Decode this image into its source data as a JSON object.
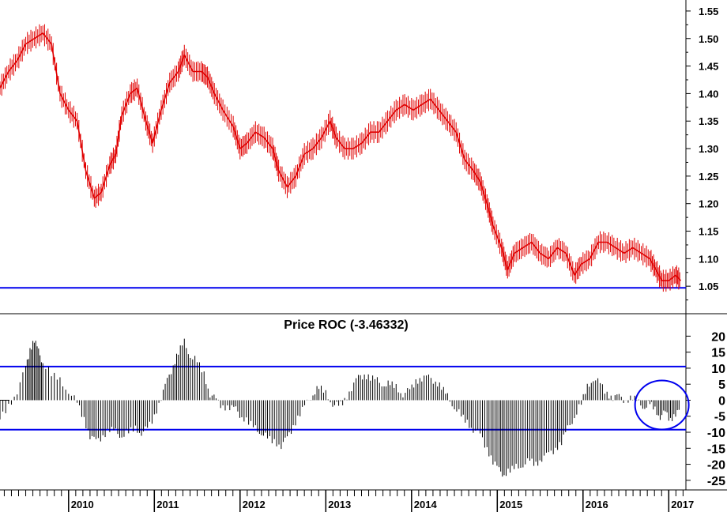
{
  "chart_data": [
    {
      "type": "line",
      "title": "",
      "xlabel": "",
      "ylabel": "",
      "ylim": [
        1.0,
        1.57
      ],
      "xlim": [
        2009.2,
        2017.2
      ],
      "y_ticks": [
        "1.55",
        "1.50",
        "1.45",
        "1.40",
        "1.35",
        "1.30",
        "1.25",
        "1.20",
        "1.15",
        "1.10",
        "1.05"
      ],
      "y_tick_values": [
        1.55,
        1.5,
        1.45,
        1.4,
        1.35,
        1.3,
        1.25,
        1.2,
        1.15,
        1.1,
        1.05
      ],
      "horizontal_lines": [
        1.047
      ],
      "series": [
        {
          "color": "#e00000",
          "points": [
            [
              2009.2,
              1.41
            ],
            [
              2009.3,
              1.44
            ],
            [
              2009.4,
              1.46
            ],
            [
              2009.5,
              1.49
            ],
            [
              2009.6,
              1.5
            ],
            [
              2009.7,
              1.51
            ],
            [
              2009.8,
              1.49
            ],
            [
              2009.9,
              1.4
            ],
            [
              2010.0,
              1.37
            ],
            [
              2010.1,
              1.35
            ],
            [
              2010.2,
              1.26
            ],
            [
              2010.3,
              1.21
            ],
            [
              2010.38,
              1.22
            ],
            [
              2010.48,
              1.27
            ],
            [
              2010.55,
              1.29
            ],
            [
              2010.62,
              1.36
            ],
            [
              2010.72,
              1.4
            ],
            [
              2010.8,
              1.41
            ],
            [
              2010.9,
              1.35
            ],
            [
              2010.98,
              1.31
            ],
            [
              2011.08,
              1.37
            ],
            [
              2011.18,
              1.42
            ],
            [
              2011.28,
              1.44
            ],
            [
              2011.35,
              1.47
            ],
            [
              2011.45,
              1.44
            ],
            [
              2011.55,
              1.44
            ],
            [
              2011.62,
              1.43
            ],
            [
              2011.7,
              1.4
            ],
            [
              2011.8,
              1.37
            ],
            [
              2011.92,
              1.34
            ],
            [
              2012.0,
              1.3
            ],
            [
              2012.08,
              1.31
            ],
            [
              2012.18,
              1.33
            ],
            [
              2012.28,
              1.32
            ],
            [
              2012.38,
              1.3
            ],
            [
              2012.45,
              1.26
            ],
            [
              2012.55,
              1.23
            ],
            [
              2012.65,
              1.25
            ],
            [
              2012.75,
              1.29
            ],
            [
              2012.85,
              1.3
            ],
            [
              2012.95,
              1.32
            ],
            [
              2013.05,
              1.35
            ],
            [
              2013.12,
              1.32
            ],
            [
              2013.22,
              1.3
            ],
            [
              2013.32,
              1.3
            ],
            [
              2013.42,
              1.31
            ],
            [
              2013.52,
              1.33
            ],
            [
              2013.62,
              1.33
            ],
            [
              2013.72,
              1.35
            ],
            [
              2013.82,
              1.37
            ],
            [
              2013.92,
              1.38
            ],
            [
              2014.02,
              1.37
            ],
            [
              2014.12,
              1.38
            ],
            [
              2014.22,
              1.39
            ],
            [
              2014.32,
              1.37
            ],
            [
              2014.42,
              1.35
            ],
            [
              2014.52,
              1.33
            ],
            [
              2014.62,
              1.28
            ],
            [
              2014.72,
              1.26
            ],
            [
              2014.8,
              1.24
            ],
            [
              2014.88,
              1.2
            ],
            [
              2014.95,
              1.16
            ],
            [
              2015.05,
              1.12
            ],
            [
              2015.12,
              1.08
            ],
            [
              2015.2,
              1.11
            ],
            [
              2015.3,
              1.12
            ],
            [
              2015.4,
              1.13
            ],
            [
              2015.5,
              1.11
            ],
            [
              2015.6,
              1.1
            ],
            [
              2015.7,
              1.12
            ],
            [
              2015.8,
              1.11
            ],
            [
              2015.9,
              1.07
            ],
            [
              2015.98,
              1.09
            ],
            [
              2016.08,
              1.1
            ],
            [
              2016.18,
              1.13
            ],
            [
              2016.28,
              1.13
            ],
            [
              2016.38,
              1.12
            ],
            [
              2016.48,
              1.11
            ],
            [
              2016.58,
              1.12
            ],
            [
              2016.68,
              1.11
            ],
            [
              2016.78,
              1.1
            ],
            [
              2016.85,
              1.08
            ],
            [
              2016.92,
              1.06
            ],
            [
              2017.0,
              1.06
            ],
            [
              2017.08,
              1.07
            ],
            [
              2017.14,
              1.06
            ]
          ]
        }
      ]
    },
    {
      "type": "bar",
      "title": "Price ROC (-3.46332)",
      "xlabel": "",
      "ylabel": "",
      "ylim": [
        -28,
        27
      ],
      "xlim": [
        2009.2,
        2017.2
      ],
      "y_ticks": [
        "20",
        "15",
        "10",
        "5",
        "0",
        "-5",
        "-10",
        "-15",
        "-20",
        "-25"
      ],
      "y_tick_values": [
        20,
        15,
        10,
        5,
        0,
        -5,
        -10,
        -15,
        -20,
        -25
      ],
      "horizontal_lines": [
        10.5,
        -9.2
      ],
      "annotation": "circle",
      "annotation_center": [
        2016.92,
        -1.5
      ],
      "series": [
        {
          "color": "#000000",
          "points": [
            [
              2009.2,
              -6
            ],
            [
              2009.3,
              -2
            ],
            [
              2009.4,
              3
            ],
            [
              2009.5,
              10
            ],
            [
              2009.55,
              16
            ],
            [
              2009.6,
              19
            ],
            [
              2009.65,
              15
            ],
            [
              2009.7,
              12
            ],
            [
              2009.8,
              8
            ],
            [
              2009.9,
              6
            ],
            [
              2010.0,
              3
            ],
            [
              2010.1,
              -1
            ],
            [
              2010.18,
              -6
            ],
            [
              2010.25,
              -11
            ],
            [
              2010.32,
              -13
            ],
            [
              2010.4,
              -11
            ],
            [
              2010.48,
              -9
            ],
            [
              2010.55,
              -10
            ],
            [
              2010.62,
              -11
            ],
            [
              2010.7,
              -10
            ],
            [
              2010.78,
              -9
            ],
            [
              2010.85,
              -10
            ],
            [
              2010.92,
              -9
            ],
            [
              2011.0,
              -5
            ],
            [
              2011.08,
              1
            ],
            [
              2011.15,
              6
            ],
            [
              2011.22,
              11
            ],
            [
              2011.28,
              15
            ],
            [
              2011.35,
              18
            ],
            [
              2011.42,
              14
            ],
            [
              2011.5,
              12
            ],
            [
              2011.58,
              8
            ],
            [
              2011.65,
              2
            ],
            [
              2011.72,
              0
            ],
            [
              2011.8,
              -2
            ],
            [
              2011.88,
              -2
            ],
            [
              2011.95,
              -3
            ],
            [
              2012.02,
              -5
            ],
            [
              2012.1,
              -7
            ],
            [
              2012.18,
              -9
            ],
            [
              2012.25,
              -10
            ],
            [
              2012.32,
              -12
            ],
            [
              2012.4,
              -13
            ],
            [
              2012.48,
              -14
            ],
            [
              2012.55,
              -12
            ],
            [
              2012.62,
              -8
            ],
            [
              2012.7,
              -4
            ],
            [
              2012.78,
              -1
            ],
            [
              2012.85,
              2
            ],
            [
              2012.92,
              4
            ],
            [
              2013.0,
              2
            ],
            [
              2013.08,
              -1
            ],
            [
              2013.15,
              -2
            ],
            [
              2013.22,
              0
            ],
            [
              2013.3,
              4
            ],
            [
              2013.38,
              7
            ],
            [
              2013.45,
              8
            ],
            [
              2013.52,
              7
            ],
            [
              2013.6,
              6
            ],
            [
              2013.68,
              5
            ],
            [
              2013.75,
              5
            ],
            [
              2013.82,
              4
            ],
            [
              2013.9,
              2
            ],
            [
              2013.98,
              3
            ],
            [
              2014.05,
              6
            ],
            [
              2014.12,
              7
            ],
            [
              2014.2,
              7
            ],
            [
              2014.28,
              6
            ],
            [
              2014.35,
              4
            ],
            [
              2014.42,
              1
            ],
            [
              2014.5,
              -2
            ],
            [
              2014.58,
              -5
            ],
            [
              2014.65,
              -7
            ],
            [
              2014.72,
              -9
            ],
            [
              2014.8,
              -11
            ],
            [
              2014.88,
              -15
            ],
            [
              2014.95,
              -19
            ],
            [
              2015.02,
              -22
            ],
            [
              2015.08,
              -23
            ],
            [
              2015.15,
              -22
            ],
            [
              2015.22,
              -21
            ],
            [
              2015.3,
              -20
            ],
            [
              2015.38,
              -19
            ],
            [
              2015.45,
              -20
            ],
            [
              2015.52,
              -18
            ],
            [
              2015.6,
              -17
            ],
            [
              2015.68,
              -15
            ],
            [
              2015.75,
              -13
            ],
            [
              2015.82,
              -9
            ],
            [
              2015.9,
              -5
            ],
            [
              2015.98,
              -1
            ],
            [
              2016.05,
              4
            ],
            [
              2016.12,
              7
            ],
            [
              2016.2,
              5
            ],
            [
              2016.28,
              2
            ],
            [
              2016.35,
              1
            ],
            [
              2016.42,
              1
            ],
            [
              2016.5,
              0
            ],
            [
              2016.58,
              1
            ],
            [
              2016.65,
              -1
            ],
            [
              2016.72,
              -2
            ],
            [
              2016.78,
              -1
            ],
            [
              2016.84,
              -3
            ],
            [
              2016.9,
              -5
            ],
            [
              2016.96,
              -4
            ],
            [
              2017.02,
              -6
            ],
            [
              2017.08,
              -4
            ],
            [
              2017.14,
              -3.5
            ]
          ]
        }
      ]
    }
  ],
  "x_axis": {
    "labels": [
      "2010",
      "2011",
      "2012",
      "2013",
      "2014",
      "2015",
      "2016",
      "2017"
    ],
    "label_values": [
      2010.0,
      2011.0,
      2012.0,
      2013.0,
      2014.0,
      2015.0,
      2016.0,
      2017.0
    ]
  },
  "colors": {
    "price_line": "#e00000",
    "roc_bars": "#000000",
    "reference_lines": "#0000ee",
    "circle": "#0000ee",
    "axes": "#000000"
  }
}
